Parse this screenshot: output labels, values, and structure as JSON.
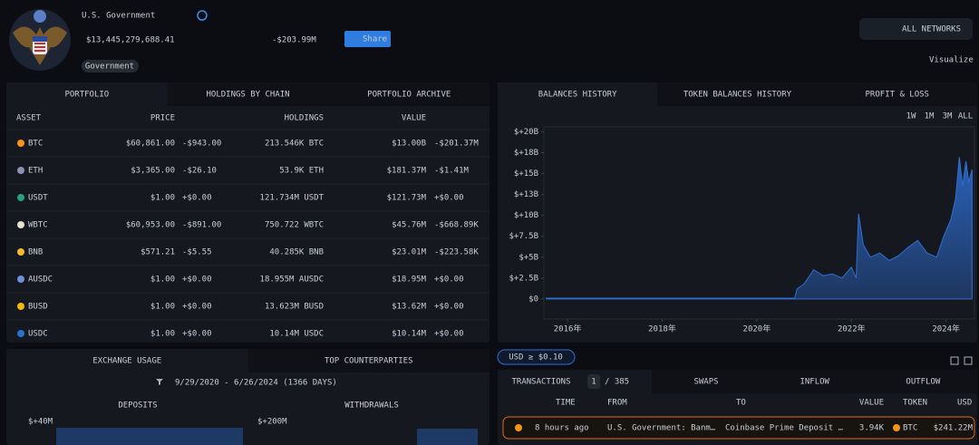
{
  "header": {
    "title": "U.S. Government",
    "total_value": "$13,445,279,688.41",
    "change": "-$203.99M",
    "share": "Share",
    "tag": "Government"
  },
  "toolbar": {
    "networks": "ALL NETWORKS",
    "visualize": "Visualize"
  },
  "portfolio": {
    "tabs": [
      "PORTFOLIO",
      "HOLDINGS BY CHAIN",
      "PORTFOLIO ARCHIVE"
    ],
    "columns": [
      "ASSET",
      "PRICE",
      "HOLDINGS",
      "VALUE"
    ],
    "rows": [
      {
        "asset": "BTC",
        "icon_color": "#f7931a",
        "price": "$60,861.00",
        "price_change": "-$943.00",
        "holdings": "213.546K BTC",
        "value": "$13.00B",
        "value_change": "-$201.37M"
      },
      {
        "asset": "ETH",
        "icon_color": "#8a92b2",
        "price": "$3,365.00",
        "price_change": "-$26.10",
        "holdings": "53.9K ETH",
        "value": "$181.37M",
        "value_change": "-$1.41M"
      },
      {
        "asset": "USDT",
        "icon_color": "#26a17b",
        "price": "$1.00",
        "price_change": "+$0.00",
        "holdings": "121.734M USDT",
        "value": "$121.73M",
        "value_change": "+$0.00"
      },
      {
        "asset": "WBTC",
        "icon_color": "#e8e0d0",
        "price": "$60,953.00",
        "price_change": "-$891.00",
        "holdings": "750.722 WBTC",
        "value": "$45.76M",
        "value_change": "-$668.89K"
      },
      {
        "asset": "BNB",
        "icon_color": "#f3ba2f",
        "price": "$571.21",
        "price_change": "-$5.55",
        "holdings": "40.285K BNB",
        "value": "$23.01M",
        "value_change": "-$223.58K"
      },
      {
        "asset": "AUSDC",
        "icon_color": "#6f8fd6",
        "price": "$1.00",
        "price_change": "+$0.00",
        "holdings": "18.955M AUSDC",
        "value": "$18.95M",
        "value_change": "+$0.00"
      },
      {
        "asset": "BUSD",
        "icon_color": "#f0b90b",
        "price": "$1.00",
        "price_change": "+$0.00",
        "holdings": "13.623M BUSD",
        "value": "$13.62M",
        "value_change": "+$0.00"
      },
      {
        "asset": "USDC",
        "icon_color": "#2775ca",
        "price": "$1.00",
        "price_change": "+$0.00",
        "holdings": "10.14M USDC",
        "value": "$10.14M",
        "value_change": "+$0.00"
      }
    ]
  },
  "balances": {
    "tabs": [
      "BALANCES HISTORY",
      "TOKEN BALANCES HISTORY",
      "PROFIT & LOSS"
    ],
    "ranges": [
      "1W",
      "1M",
      "3M",
      "ALL"
    ],
    "chart": {
      "type": "area",
      "color": "#2f6fd6",
      "x": [
        2015.55,
        2016,
        2017,
        2018,
        2019,
        2020,
        2020.8,
        2020.85,
        2021.0,
        2021.2,
        2021.4,
        2021.6,
        2021.8,
        2022.0,
        2022.1,
        2022.15,
        2022.25,
        2022.4,
        2022.6,
        2022.8,
        2023.0,
        2023.2,
        2023.4,
        2023.6,
        2023.8,
        2023.95,
        2024.1,
        2024.2,
        2024.28,
        2024.35,
        2024.42,
        2024.48,
        2024.55
      ],
      "values": [
        0.1,
        0.1,
        0.1,
        0.1,
        0.1,
        0.1,
        0.1,
        1.2,
        1.8,
        3.5,
        2.8,
        3.0,
        2.5,
        3.8,
        2.5,
        10.2,
        6.5,
        5.0,
        5.5,
        4.6,
        5.2,
        6.2,
        7.0,
        5.5,
        5.0,
        7.5,
        9.5,
        12.0,
        17.0,
        13.5,
        16.5,
        14.0,
        15.5
      ],
      "xlim": [
        2015.5,
        2024.6
      ],
      "ylim": [
        -2.4,
        20.6
      ],
      "yticks": [
        {
          "value": 0,
          "label": "$0"
        },
        {
          "value": 2.5,
          "label": "$+2.5B"
        },
        {
          "value": 5,
          "label": "$+5B"
        },
        {
          "value": 7.5,
          "label": "$+7.5B"
        },
        {
          "value": 10,
          "label": "$+10B"
        },
        {
          "value": 12.5,
          "label": "$+13B"
        },
        {
          "value": 15,
          "label": "$+15B"
        },
        {
          "value": 17.5,
          "label": "$+18B"
        },
        {
          "value": 20,
          "label": "$+20B"
        }
      ],
      "xticks": [
        {
          "value": 2016,
          "label": "2016年"
        },
        {
          "value": 2018,
          "label": "2018年"
        },
        {
          "value": 2020,
          "label": "2020年"
        },
        {
          "value": 2022,
          "label": "2022年"
        },
        {
          "value": 2024,
          "label": "2024年"
        }
      ]
    }
  },
  "exchange": {
    "tabs": [
      "EXCHANGE USAGE",
      "TOP COUNTERPARTIES"
    ],
    "date_range": "9/29/2020 - 6/26/2024  (1366 DAYS)",
    "deposits": {
      "title": "DEPOSITS",
      "axis_label": "$+40M"
    },
    "withdrawals": {
      "title": "WITHDRAWALS",
      "axis_label": "$+200M"
    }
  },
  "filter": "USD ≥ $0.10",
  "transactions": {
    "tab": "TRANSACTIONS",
    "page": "1",
    "pages": "/ 385",
    "other_tabs": [
      "SWAPS",
      "INFLOW",
      "OUTFLOW"
    ],
    "columns": [
      "TIME",
      "FROM",
      "TO",
      "VALUE",
      "TOKEN",
      "USD"
    ],
    "rows": [
      {
        "time": "8 hours ago",
        "from": "U.S. Government: Banm…",
        "to": "Coinbase Prime Deposit …",
        "value": "3.94K",
        "token": "BTC",
        "usd": "$241.22M"
      }
    ]
  }
}
